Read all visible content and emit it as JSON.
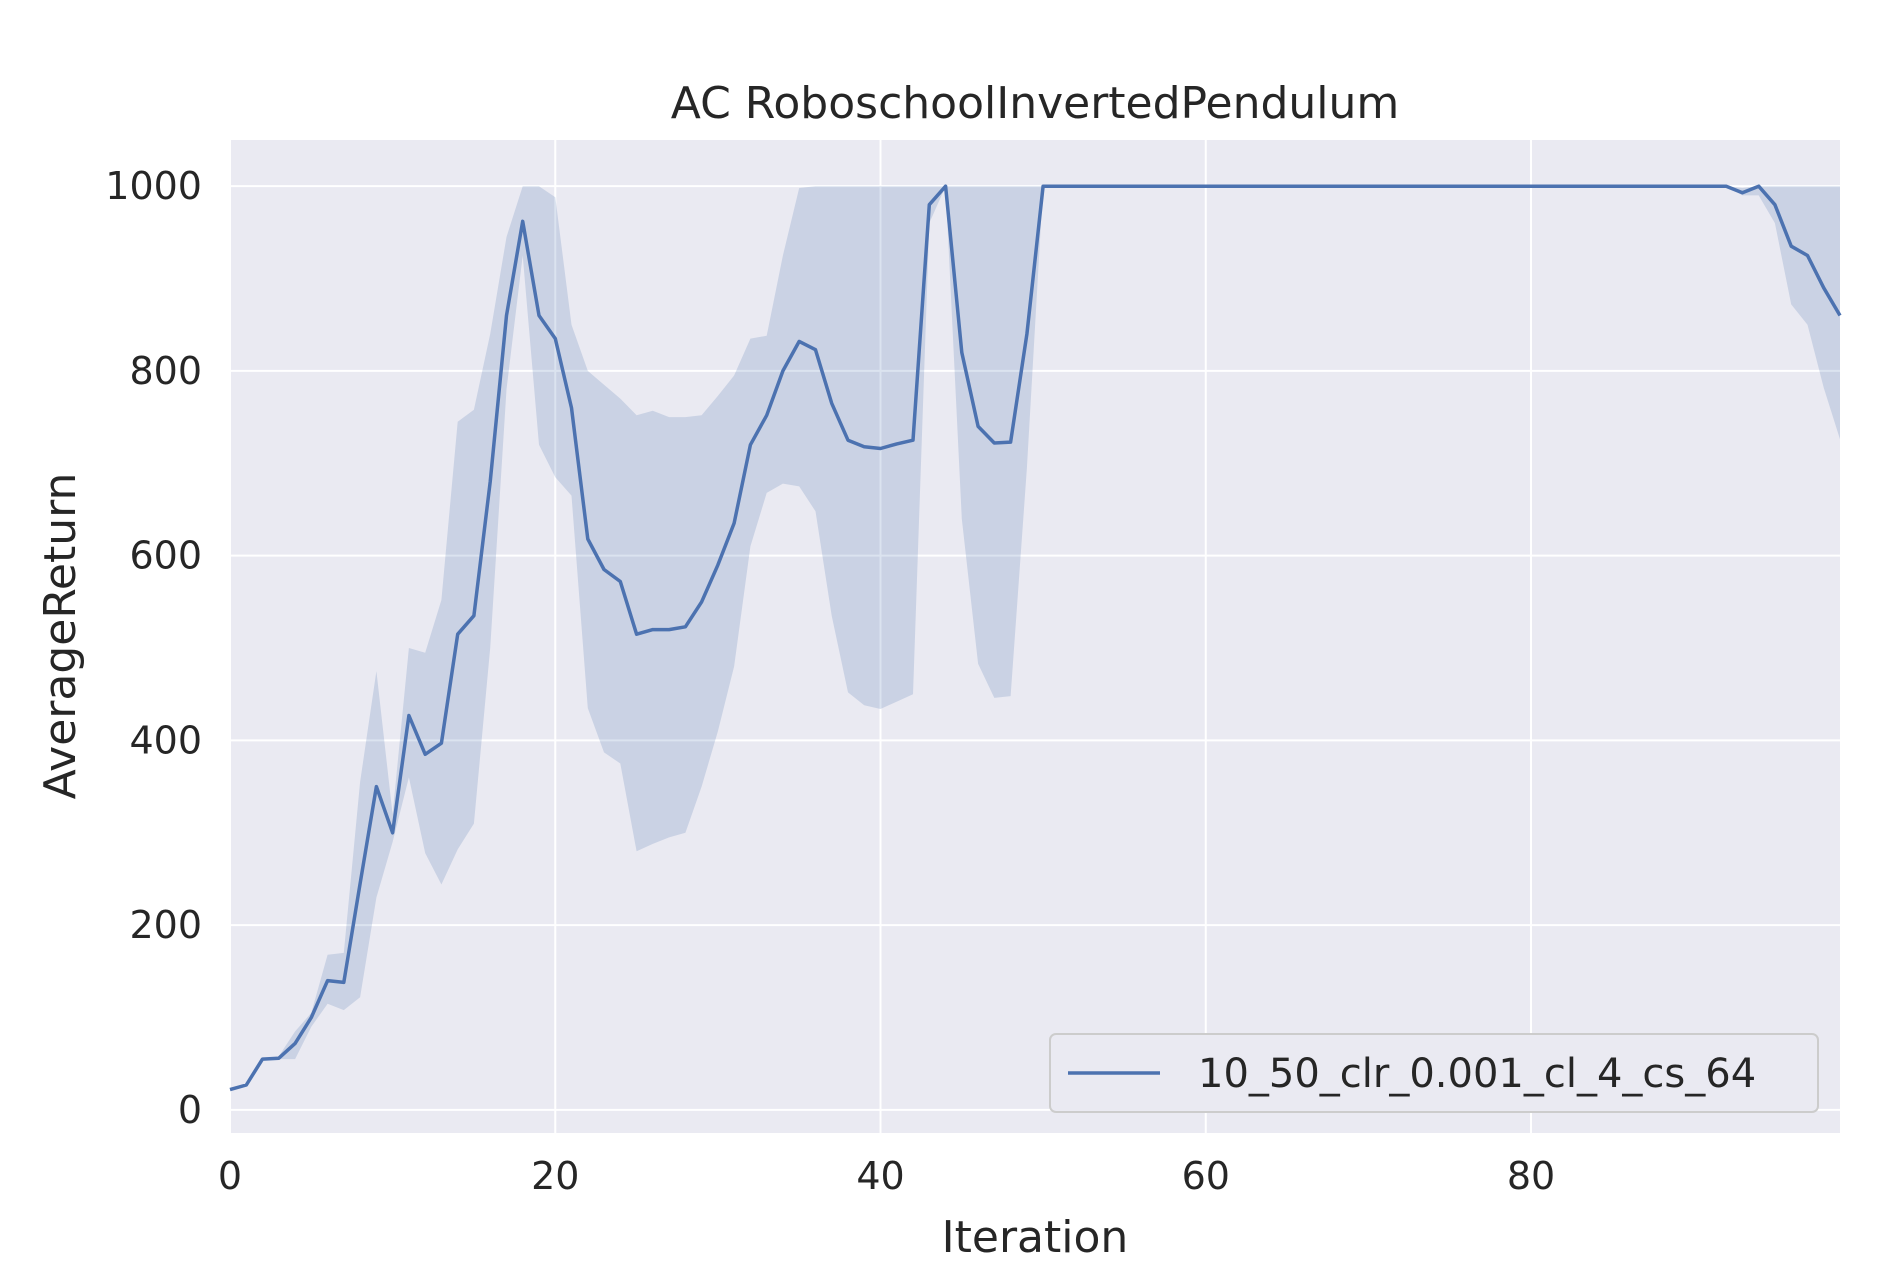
{
  "chart_data": {
    "type": "line",
    "title": "AC RoboschoolInvertedPendulum",
    "xlabel": "Iteration",
    "ylabel": "AverageReturn",
    "xlim": [
      0,
      99
    ],
    "ylim": [
      -25,
      1050
    ],
    "xticks": [
      0,
      20,
      40,
      60,
      80
    ],
    "yticks": [
      0,
      200,
      400,
      600,
      800,
      1000
    ],
    "grid": true,
    "legend_position": "lower-right",
    "colors": {
      "line": "#4c72b0",
      "band": "#4c72b0",
      "background": "#eaeaf2",
      "grid": "#ffffff"
    },
    "series": [
      {
        "name": "10_50_clr_0.001_cl_4_cs_64",
        "x": [
          0,
          1,
          2,
          3,
          4,
          5,
          6,
          7,
          8,
          9,
          10,
          11,
          12,
          13,
          14,
          15,
          16,
          17,
          18,
          19,
          20,
          21,
          22,
          23,
          24,
          25,
          26,
          27,
          28,
          29,
          30,
          31,
          32,
          33,
          34,
          35,
          36,
          37,
          38,
          39,
          40,
          41,
          42,
          43,
          44,
          45,
          46,
          47,
          48,
          49,
          50,
          51,
          52,
          53,
          54,
          55,
          56,
          57,
          58,
          59,
          60,
          61,
          62,
          63,
          64,
          65,
          66,
          67,
          68,
          69,
          70,
          71,
          72,
          73,
          74,
          75,
          76,
          77,
          78,
          79,
          80,
          81,
          82,
          83,
          84,
          85,
          86,
          87,
          88,
          89,
          90,
          91,
          92,
          93,
          94,
          95,
          96,
          97,
          98,
          99
        ],
        "y": [
          22,
          27,
          55,
          56,
          72,
          100,
          140,
          138,
          245,
          350,
          300,
          427,
          385,
          397,
          515,
          535,
          680,
          860,
          962,
          860,
          835,
          760,
          618,
          585,
          572,
          515,
          520,
          520,
          523,
          550,
          590,
          635,
          720,
          752,
          800,
          832,
          823,
          765,
          725,
          718,
          716,
          721,
          725,
          980,
          1000,
          820,
          740,
          722,
          723,
          840,
          1000,
          1000,
          1000,
          1000,
          1000,
          1000,
          1000,
          1000,
          1000,
          1000,
          1000,
          1000,
          1000,
          1000,
          1000,
          1000,
          1000,
          1000,
          1000,
          1000,
          1000,
          1000,
          1000,
          1000,
          1000,
          1000,
          1000,
          1000,
          1000,
          1000,
          1000,
          1000,
          1000,
          1000,
          1000,
          1000,
          1000,
          1000,
          1000,
          1000,
          1000,
          1000,
          1000,
          993,
          1000,
          980,
          935,
          925,
          890,
          860
        ],
        "lower": [
          22,
          27,
          55,
          55,
          55,
          90,
          115,
          108,
          122,
          230,
          290,
          360,
          278,
          244,
          282,
          310,
          500,
          780,
          925,
          720,
          685,
          665,
          435,
          387,
          375,
          280,
          288,
          295,
          300,
          350,
          410,
          480,
          610,
          668,
          678,
          675,
          648,
          535,
          452,
          438,
          434,
          442,
          450,
          960,
          1000,
          640,
          483,
          446,
          448,
          695,
          1000,
          1000,
          1000,
          1000,
          1000,
          1000,
          1000,
          1000,
          1000,
          1000,
          1000,
          1000,
          1000,
          1000,
          1000,
          1000,
          1000,
          1000,
          1000,
          1000,
          1000,
          1000,
          1000,
          1000,
          1000,
          1000,
          1000,
          1000,
          1000,
          1000,
          1000,
          1000,
          1000,
          1000,
          1000,
          1000,
          1000,
          1000,
          1000,
          1000,
          1000,
          1000,
          1000,
          990,
          990,
          960,
          872,
          850,
          782,
          726
        ],
        "upper": [
          22,
          27,
          55,
          58,
          85,
          105,
          168,
          170,
          355,
          475,
          320,
          500,
          495,
          552,
          745,
          758,
          840,
          945,
          1000,
          1000,
          988,
          850,
          800,
          785,
          770,
          752,
          757,
          750,
          750,
          752,
          773,
          795,
          835,
          838,
          925,
          998,
          1000,
          1000,
          1000,
          1000,
          1000,
          1000,
          1000,
          1000,
          1000,
          1000,
          1000,
          1000,
          1000,
          1000,
          1000,
          1000,
          1000,
          1000,
          1000,
          1000,
          1000,
          1000,
          1000,
          1000,
          1000,
          1000,
          1000,
          1000,
          1000,
          1000,
          1000,
          1000,
          1000,
          1000,
          1000,
          1000,
          1000,
          1000,
          1000,
          1000,
          1000,
          1000,
          1000,
          1000,
          1000,
          1000,
          1000,
          1000,
          1000,
          1000,
          1000,
          1000,
          1000,
          1000,
          1000,
          1000,
          1000,
          998,
          1000,
          1000,
          1000,
          1000,
          1000,
          1000
        ]
      }
    ]
  }
}
